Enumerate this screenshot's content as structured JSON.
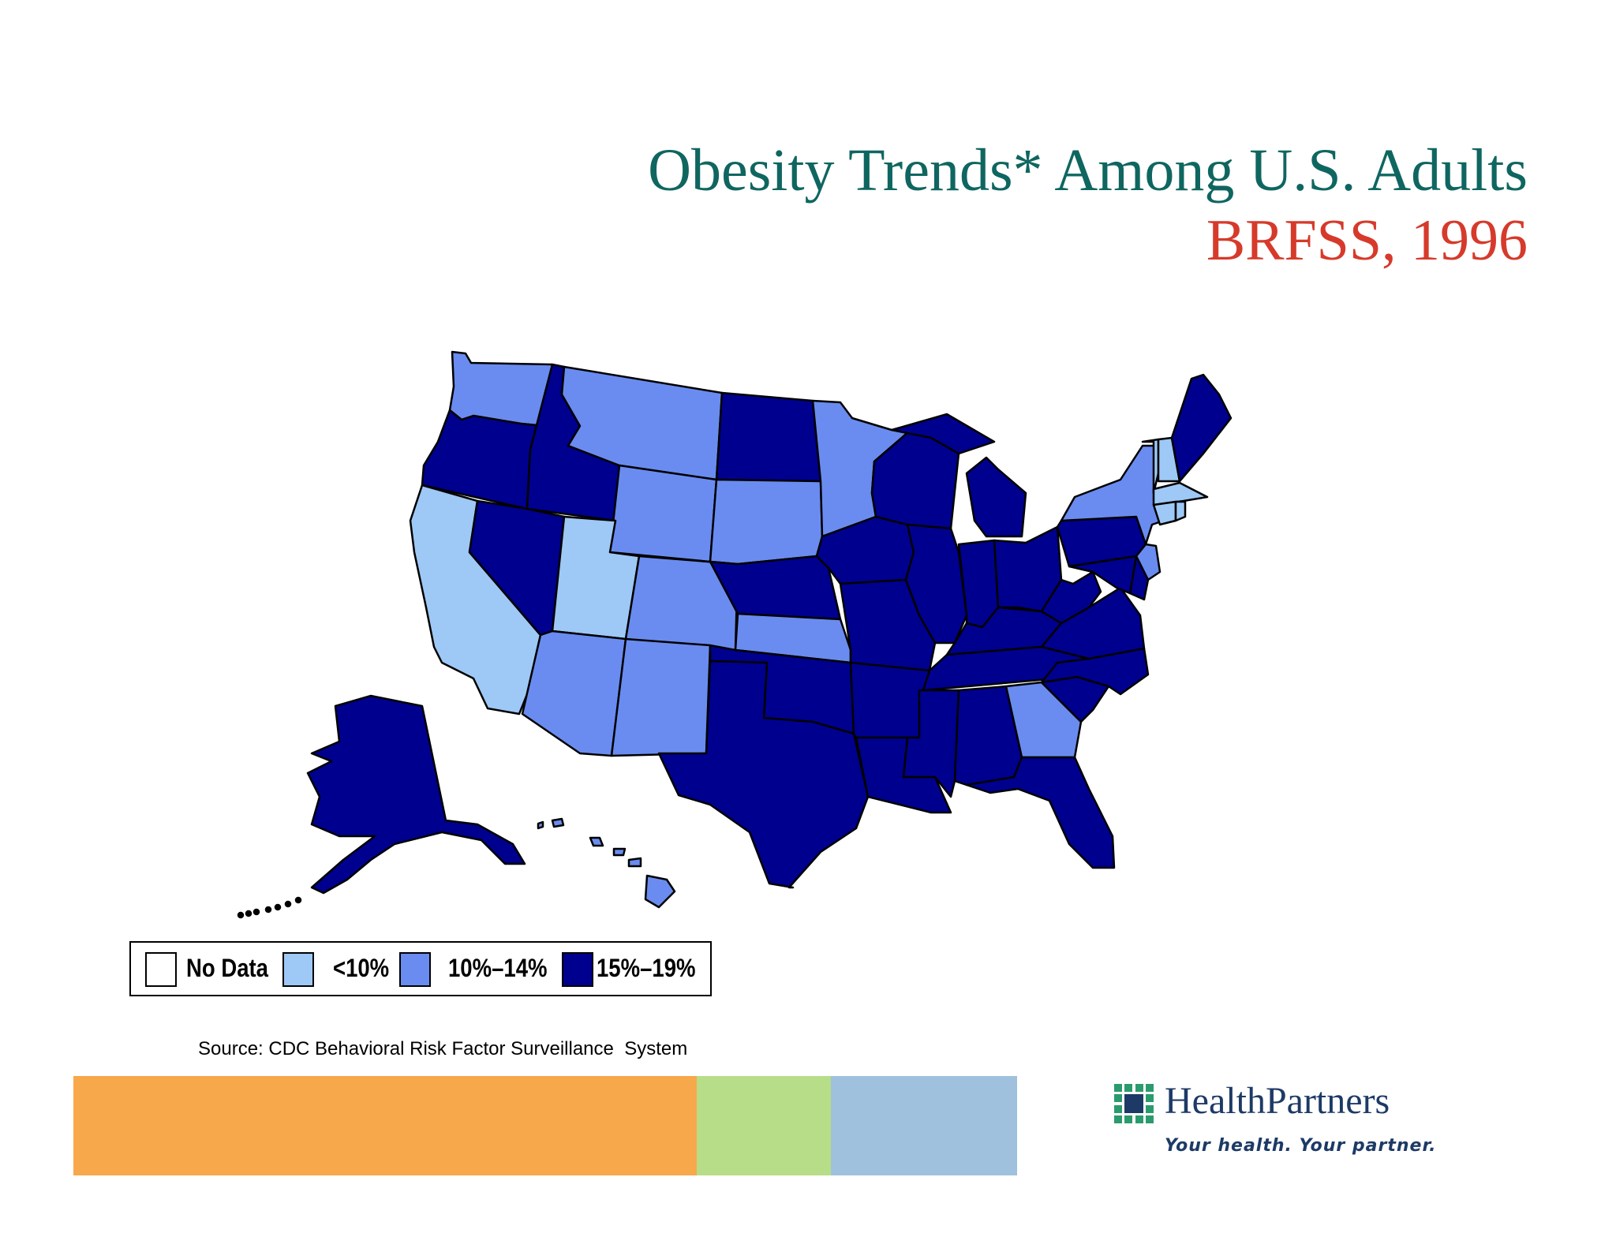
{
  "title": "Obesity Trends* Among U.S. Adults",
  "subtitle": "BRFSS, 1996",
  "source": "Source: CDC Behavioral Risk Factor Surveillance  System",
  "legend": [
    {
      "id": "nodata",
      "label": "No Data",
      "color": "#ffffff"
    },
    {
      "id": "lt10",
      "label": "<10%",
      "color": "#9ec8f5"
    },
    {
      "id": "10to14",
      "label": "10%–14%",
      "color": "#6a8cf0"
    },
    {
      "id": "15to19",
      "label": "15%–19%",
      "color": "#00008e"
    }
  ],
  "states": {
    "WA": "10to14",
    "OR": "15to19",
    "CA": "lt10",
    "NV": "15to19",
    "ID": "15to19",
    "MT": "10to14",
    "WY": "10to14",
    "UT": "lt10",
    "AZ": "10to14",
    "CO": "10to14",
    "NM": "10to14",
    "ND": "15to19",
    "SD": "10to14",
    "NE": "15to19",
    "KS": "10to14",
    "OK": "15to19",
    "TX": "15to19",
    "MN": "10to14",
    "IA": "15to19",
    "MO": "15to19",
    "AR": "15to19",
    "LA": "15to19",
    "WI": "15to19",
    "IL": "15to19",
    "MI": "15to19",
    "IN": "15to19",
    "OH": "15to19",
    "KY": "15to19",
    "TN": "15to19",
    "MS": "15to19",
    "AL": "15to19",
    "GA": "10to14",
    "FL": "15to19",
    "SC": "15to19",
    "NC": "15to19",
    "VA": "15to19",
    "WV": "15to19",
    "PA": "15to19",
    "NY": "10to14",
    "VT": "lt10",
    "NH": "lt10",
    "ME": "15to19",
    "MA": "lt10",
    "RI": "lt10",
    "CT": "lt10",
    "NJ": "10to14",
    "DE": "15to19",
    "MD": "15to19",
    "AK": "15to19",
    "HI": "10to14"
  },
  "stripes": [
    "#f7a84a",
    "#b7dd88",
    "#9fc1dd"
  ],
  "logo": {
    "name": "HealthPartners",
    "tagline": "Your health. Your partner."
  }
}
